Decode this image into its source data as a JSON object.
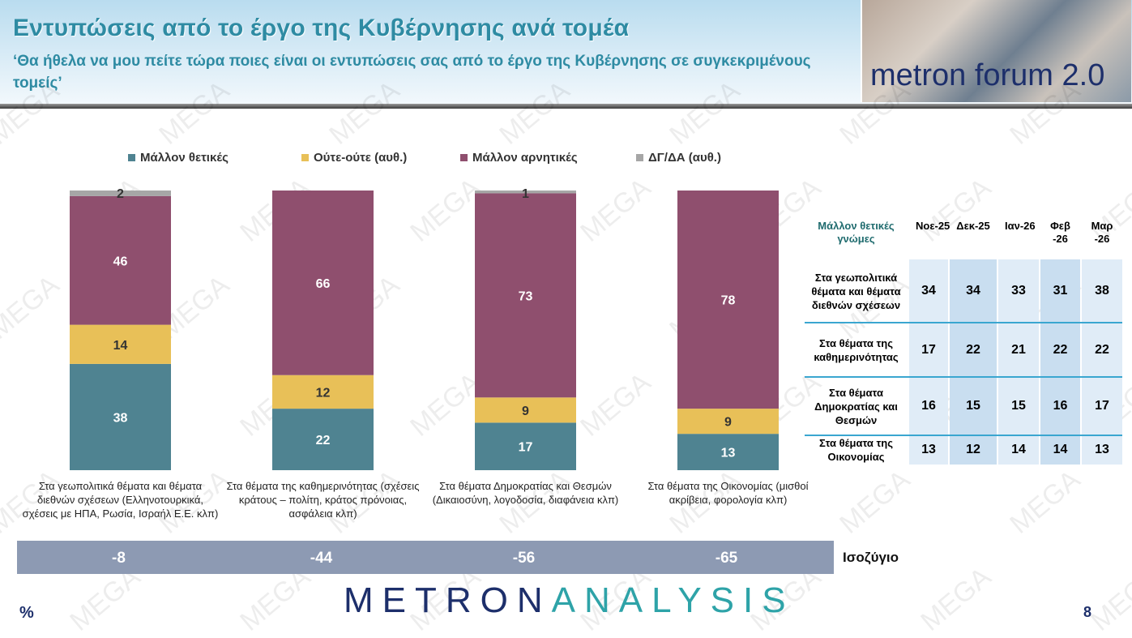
{
  "header": {
    "title": "Εντυπώσεις από το έργο της Κυβέρνησης ανά τομέα",
    "subtitle": "‘Θα ήθελα να μου πείτε τώρα ποιες είναι οι εντυπώσεις σας από το έργο της Κυβέρνησης σε συγκεκριμένους τομείς’",
    "logo_text": "metron forum 2.0"
  },
  "chart_data": {
    "type": "bar",
    "stacked": true,
    "unit": "%",
    "categories": [
      "Στα γεωπολιτικά θέματα και θέματα διεθνών σχέσεων (Ελληνοτουρκικά, σχέσεις με ΗΠΑ, Ρωσία, Ισραήλ Ε.Ε. κλπ)",
      "Στα θέματα της καθημερινότητας (σχέσεις κράτους – πολίτη, κράτος πρόνοιας, ασφάλεια κλπ)",
      "Στα θέματα Δημοκρατίας και Θεσμών (Δικαιοσύνη, λογοδοσία, διαφάνεια κλπ)",
      "Στα θέματα της Οικονομίας (μισθοί ακρίβεια, φορολογία κλπ)"
    ],
    "series": [
      {
        "name": "Μάλλον θετικές",
        "color": "#4f8391",
        "values": [
          38,
          22,
          17,
          13
        ]
      },
      {
        "name": "Ούτε-ούτε  (αυθ.)",
        "color": "#e8c058",
        "values": [
          14,
          12,
          9,
          9
        ]
      },
      {
        "name": "Μάλλον αρνητικές",
        "color": "#8f4f6e",
        "values": [
          46,
          66,
          73,
          78
        ]
      },
      {
        "name": "ΔΓ/ΔΑ (αυθ.)",
        "color": "#a6a6a6",
        "values": [
          2,
          null,
          1,
          null
        ]
      }
    ],
    "ylim": [
      0,
      100
    ],
    "legend": "top",
    "grid": false
  },
  "balance": {
    "label": "Ισοζύγιο",
    "values": [
      "-8",
      "-44",
      "-56",
      "-65"
    ]
  },
  "table": {
    "title": "Μάλλον θετικές γνώμες",
    "columns": [
      "Νοε-25",
      "Δεκ-25",
      "Ιαν-26",
      "Φεβ -26",
      "Μαρ -26"
    ],
    "rows": [
      {
        "label": "Στα γεωπολιτικά θέματα και θέματα διεθνών σχέσεων",
        "values": [
          "34",
          "34",
          "33",
          "31",
          "38"
        ]
      },
      {
        "label": "Στα θέματα της καθημερινότητας",
        "values": [
          "17",
          "22",
          "21",
          "22",
          "22"
        ]
      },
      {
        "label": "Στα θέματα Δημοκρατίας και Θεσμών",
        "values": [
          "16",
          "15",
          "15",
          "16",
          "17"
        ]
      },
      {
        "label": "Στα θέματα της Οικονομίας",
        "values": [
          "13",
          "12",
          "14",
          "14",
          "13"
        ]
      }
    ]
  },
  "footer": {
    "brand_a": "METRON",
    "brand_b": "ANALYSIS",
    "percent_sign": "%",
    "page_number": "8"
  },
  "watermark": "MEGA"
}
